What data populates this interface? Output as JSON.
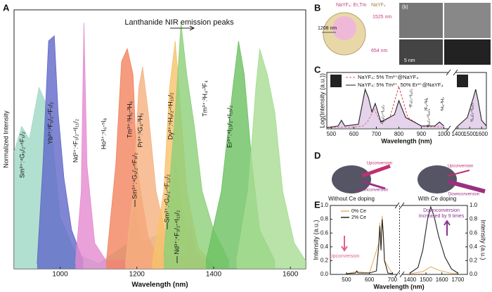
{
  "panel_letters": [
    "A",
    "B",
    "C",
    "D",
    "E"
  ],
  "chart_data": [
    {
      "type": "area",
      "title": "Lanthanide NIR emission peaks",
      "xlabel": "Wavelength (nm)",
      "ylabel": "Normalized Intensity",
      "xlim": [
        880,
        1640
      ],
      "xticks": [
        1000,
        1200,
        1400,
        1600
      ],
      "ylim": [
        0,
        1
      ],
      "series": [
        {
          "name": "Sm³⁺:⁴G₅/₂-⁶F₅/₂",
          "color": "#9fd8c4",
          "x": [
            880,
            900,
            920,
            945,
            960,
            980,
            1000,
            1040,
            1100,
            1180,
            1195,
            1210,
            1280,
            1300,
            1320,
            1360,
            1400
          ],
          "values": [
            0.45,
            0.55,
            0.5,
            0.7,
            0.65,
            0.5,
            0.2,
            0.06,
            0.02,
            0.1,
            0.28,
            0.1,
            0.15,
            0.42,
            0.2,
            0.05,
            0.02
          ]
        },
        {
          "name": "Yb³⁺:²F₅/₂-²F₇/₂",
          "color": "#6068c8",
          "x": [
            940,
            955,
            970,
            985,
            995,
            1010,
            1030,
            1060
          ],
          "values": [
            0.02,
            0.4,
            0.88,
            0.9,
            0.6,
            0.35,
            0.15,
            0.03
          ]
        },
        {
          "name": "Nd³⁺:⁴F₃/₂-⁴I₁₁/₂",
          "color": "#e58ad0",
          "x": [
            1040,
            1055,
            1062,
            1070,
            1090,
            1120,
            1330,
            1340,
            1350,
            1380
          ],
          "values": [
            0.02,
            0.3,
            0.95,
            0.4,
            0.1,
            0.03,
            0.05,
            0.18,
            0.06,
            0.02
          ]
        },
        {
          "name": "Ho³⁺:⁵I₆-⁵I₈",
          "color": "#f2825e",
          "x": [
            1120,
            1145,
            1160,
            1175,
            1190,
            1200,
            1215,
            1230,
            1260
          ],
          "values": [
            0.02,
            0.4,
            0.8,
            0.85,
            0.75,
            0.4,
            0.25,
            0.12,
            0.03
          ]
        },
        {
          "name": "Tm³⁺:³H₅-³H₆",
          "color": "#f6b080",
          "x": [
            1170,
            1190,
            1205,
            1215,
            1230,
            1250,
            1280,
            1320
          ],
          "values": [
            0.02,
            0.3,
            0.7,
            0.78,
            0.6,
            0.3,
            0.1,
            0.02
          ]
        },
        {
          "name": "Pr³⁺:¹G₄-³H₅",
          "color": "#f7c26a",
          "x": [
            1240,
            1270,
            1285,
            1300,
            1315,
            1330,
            1360,
            1400
          ],
          "values": [
            0.02,
            0.3,
            0.7,
            0.88,
            0.6,
            0.3,
            0.08,
            0.02
          ]
        },
        {
          "name": "Dy³⁺:⁶H₉/₂-⁶H₁₅/₂",
          "color": "#8ccf78",
          "x": [
            1270,
            1300,
            1315,
            1330,
            1350,
            1370,
            1400,
            1440
          ],
          "values": [
            0.05,
            0.6,
            0.95,
            0.75,
            0.55,
            0.3,
            0.15,
            0.03
          ]
        },
        {
          "name": "Tm³⁺:³H₄-³F₄",
          "color": "#6cc062",
          "x": [
            1380,
            1420,
            1450,
            1465,
            1480,
            1500,
            1520,
            1560
          ],
          "values": [
            0.03,
            0.3,
            0.7,
            0.88,
            0.75,
            0.4,
            0.15,
            0.03
          ]
        },
        {
          "name": "Er³⁺:⁴I₁₃/₂-⁴I₁₅/₂",
          "color": "#a8dc92",
          "x": [
            1460,
            1490,
            1510,
            1520,
            1540,
            1560,
            1580,
            1610,
            1640
          ],
          "values": [
            0.03,
            0.3,
            0.7,
            0.85,
            0.75,
            0.6,
            0.3,
            0.1,
            0.03
          ]
        }
      ],
      "annotations": [
        "Sm³⁺:⁴G₅/₂-⁶F₉/₂",
        "Sm³⁺:⁴G₅/₂-⁶F₁₁/₂",
        "Nd³⁺:⁴F₃/₂-⁴I₁₃/₂"
      ]
    },
    {
      "type": "line",
      "xlabel": "Wavelength (nm)",
      "ylabel": "Log(Intensity (a.u.))",
      "xlim": [
        480,
        1640
      ],
      "xbreak": [
        1020,
        1380
      ],
      "xticks": [
        500,
        600,
        700,
        800,
        900,
        1000,
        1400,
        1500,
        1600
      ],
      "ylim": [
        0,
        1
      ],
      "series": [
        {
          "name": "NaYF₄: 5% Tm³⁺@NaYF₄",
          "color": "#e0505a",
          "dash": true,
          "x": [
            480,
            600,
            640,
            660,
            690,
            720,
            760,
            800,
            840,
            900,
            1000
          ],
          "values": [
            0.02,
            0.03,
            0.05,
            0.12,
            0.35,
            0.1,
            0.2,
            0.75,
            0.2,
            0.04,
            0.03
          ]
        },
        {
          "name": "NaYF₄: 5% Tm³⁺, 50% Er³⁺@NaYF₄",
          "color": "#222222",
          "dash": false,
          "x": [
            480,
            530,
            545,
            560,
            620,
            650,
            665,
            680,
            695,
            720,
            780,
            800,
            830,
            900,
            960,
            980,
            1000,
            1200,
            1400,
            1480,
            1530,
            1550,
            1570,
            1600,
            1640
          ],
          "values": [
            0.02,
            0.05,
            0.15,
            0.05,
            0.08,
            0.7,
            0.55,
            0.3,
            0.45,
            0.12,
            0.25,
            0.5,
            0.2,
            0.05,
            0.05,
            0.12,
            0.05,
            null,
            0.05,
            0.2,
            0.55,
            0.7,
            0.5,
            0.15,
            0.05
          ]
        }
      ],
      "annotations": [
        "⁴S₃/₂-⁴I₁₅/₂",
        "⁴F₉/₂-⁴I₁₅/₂",
        "³F₃-³H₆",
        "³H₄-³H₆",
        "⁴I₁₁/₂-⁴I₁₅/₂",
        "⁴I₁₃/₂-⁴I₁₅/₂"
      ]
    },
    {
      "type": "line",
      "xlabel": "Wavelength (nm)",
      "ylabel": "Intensity (a.u.)",
      "y2label": "Intensity (a.u.)",
      "xlim": [
        430,
        1760
      ],
      "xbreak": [
        720,
        1350
      ],
      "xticks": [
        500,
        600,
        700,
        1400,
        1500,
        1600,
        1700
      ],
      "ylim": [
        0,
        1
      ],
      "yticks": [
        {
          "value": 0,
          "label": "0.0"
        },
        {
          "value": 0.2,
          "label": "0.2"
        },
        {
          "value": 0.4,
          "label": "0.4"
        },
        {
          "value": 0.6,
          "label": "0.6"
        },
        {
          "value": 0.8,
          "label": "0.8"
        },
        {
          "value": 1,
          "label": "1.0"
        }
      ],
      "y2lim": [
        0,
        1
      ],
      "y2ticks": [
        {
          "value": 0,
          "label": "0.0"
        },
        {
          "value": 0.2,
          "label": "0.2"
        },
        {
          "value": 0.4,
          "label": "0.4"
        },
        {
          "value": 0.6,
          "label": "0.6"
        },
        {
          "value": 0.8,
          "label": "0.8"
        },
        {
          "value": 1,
          "label": "1.0"
        }
      ],
      "series": [
        {
          "name": "0% Ce",
          "color": "#e8b060",
          "dash": false,
          "x": [
            500,
            545,
            600,
            640,
            645,
            650,
            655,
            660,
            665,
            700,
            1000,
            1400,
            1480,
            1530,
            1580,
            1650,
            1700
          ],
          "values": [
            0.01,
            0.04,
            0.02,
            0.45,
            0.75,
            0.4,
            0.85,
            0.6,
            0.2,
            0.01,
            null,
            0.01,
            0.04,
            0.11,
            0.06,
            0.02,
            0.01
          ]
        },
        {
          "name": "2% Ce",
          "color": "#222222",
          "dash": false,
          "x": [
            500,
            540,
            545,
            550,
            600,
            630,
            640,
            645,
            650,
            655,
            660,
            665,
            680,
            700,
            1000,
            1400,
            1450,
            1480,
            1510,
            1530,
            1550,
            1580,
            1620,
            1660,
            1700
          ],
          "values": [
            0.01,
            0.02,
            0.05,
            0.02,
            0.02,
            0.05,
            0.4,
            0.7,
            0.35,
            0.8,
            0.6,
            0.2,
            0.02,
            0.01,
            null,
            0.02,
            0.1,
            0.35,
            0.8,
            0.98,
            0.85,
            0.55,
            0.25,
            0.08,
            0.02
          ]
        }
      ],
      "annotations": [
        "Upconversion",
        "Downconversion",
        "Increased by 9 times"
      ]
    }
  ],
  "diagram_b": {
    "labels": [
      "NaYF₄: Er,Tm",
      "NaYF₄",
      "1525 nm",
      "1208 nm",
      "654 nm",
      "(b)",
      "5 nm"
    ]
  },
  "diagram_d": {
    "labels": [
      "Without Ce doping",
      "With Ce doping",
      "Upconversion",
      "Downconversion",
      "Upconversion",
      "Downconversion"
    ]
  }
}
